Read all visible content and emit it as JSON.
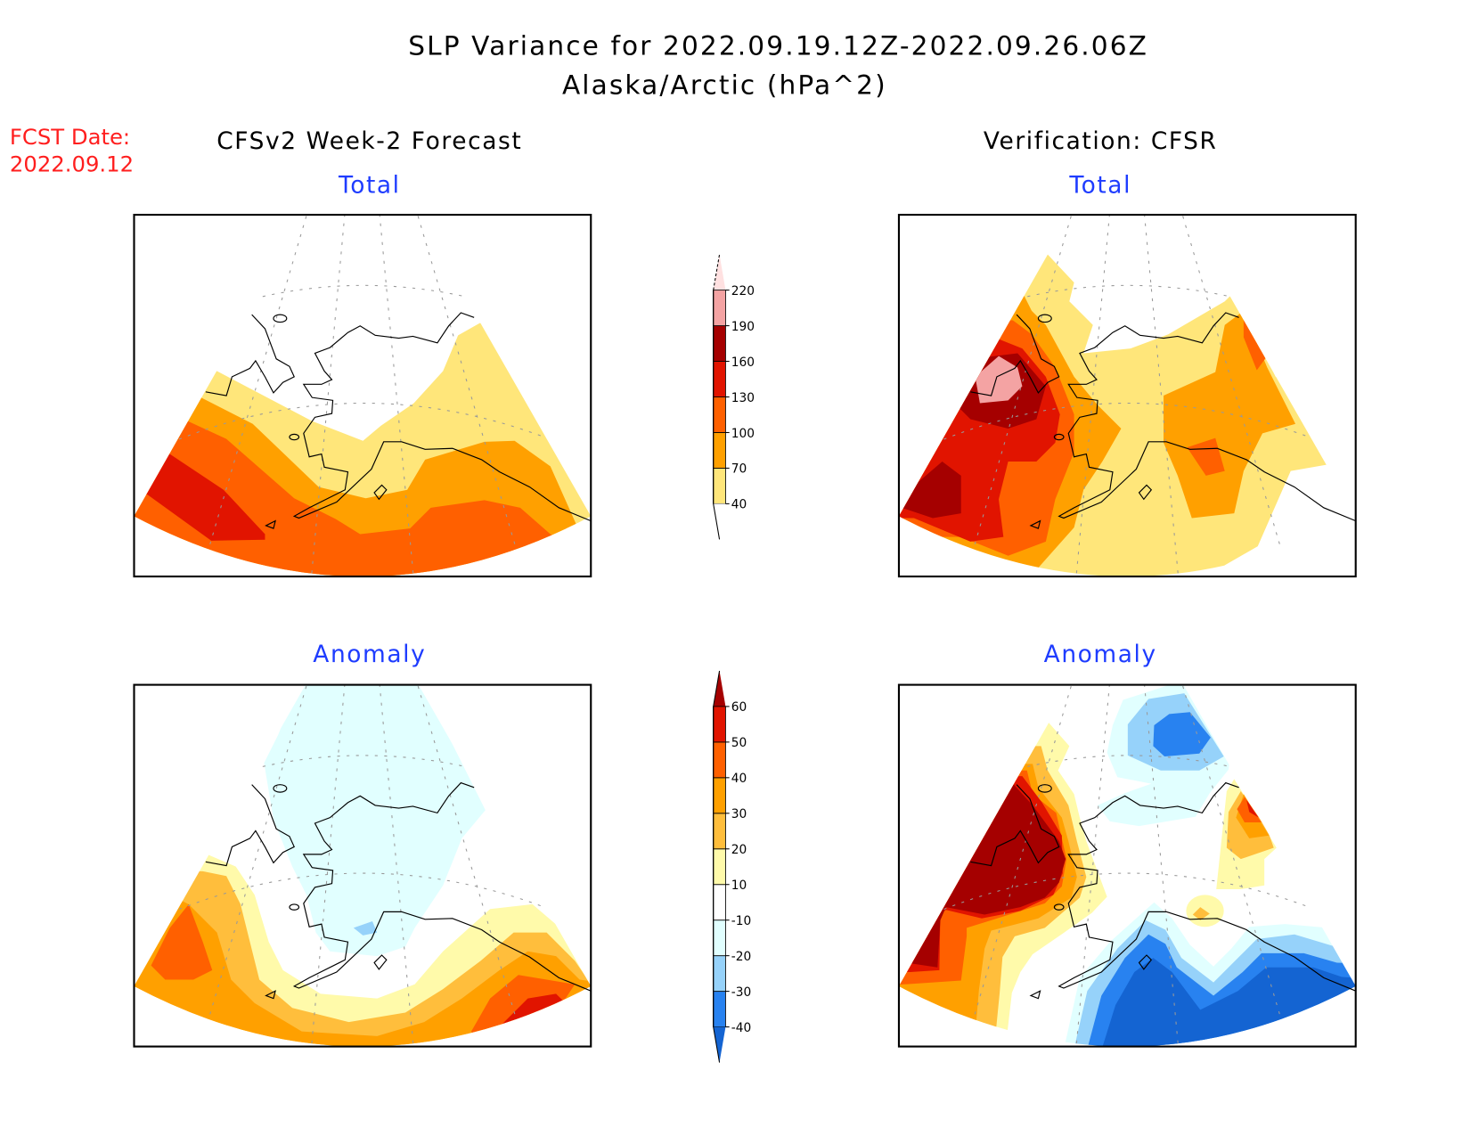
{
  "title": {
    "line1": "SLP Variance for 2022.09.19.12Z-2022.09.26.06Z",
    "line2": "Alaska/Arctic (hPa^2)"
  },
  "forecast_date": {
    "label": "FCST Date:",
    "value": "2022.09.12"
  },
  "columns": {
    "left": "CFSv2 Week-2 Forecast",
    "right": "Verification: CFSR"
  },
  "panels": {
    "forecast_total": "Total",
    "verification_total": "Total",
    "forecast_anomaly": "Anomaly",
    "verification_anomaly": "Anomaly"
  },
  "chart_data": [
    {
      "type": "heatmap",
      "name": "total-variance-colorbar",
      "levels": [
        40,
        70,
        100,
        130,
        160,
        190,
        220
      ],
      "labels": [
        "220",
        "190",
        "160",
        "130",
        "100",
        "70",
        "40"
      ],
      "colors": [
        "#ffe67a",
        "#ffa000",
        "#ff6000",
        "#e11400",
        "#a50000",
        "#f4a3a3"
      ],
      "over_color": "#ffe1e1",
      "under_color": "#ffffff"
    },
    {
      "type": "heatmap",
      "name": "anomaly-colorbar",
      "levels": [
        -40,
        -30,
        -20,
        -10,
        10,
        20,
        30,
        40,
        50,
        60
      ],
      "labels": [
        "60",
        "50",
        "40",
        "30",
        "20",
        "10",
        "-10",
        "-20",
        "-30",
        "-40"
      ],
      "colors": [
        "#2882f0",
        "#96d2fa",
        "#e1ffff",
        "#ffffff",
        "#fffaaa",
        "#ffbe3c",
        "#ffa000",
        "#ff6000",
        "#e11400"
      ],
      "over_color": "#a50000",
      "under_color": "#1464d2"
    }
  ]
}
